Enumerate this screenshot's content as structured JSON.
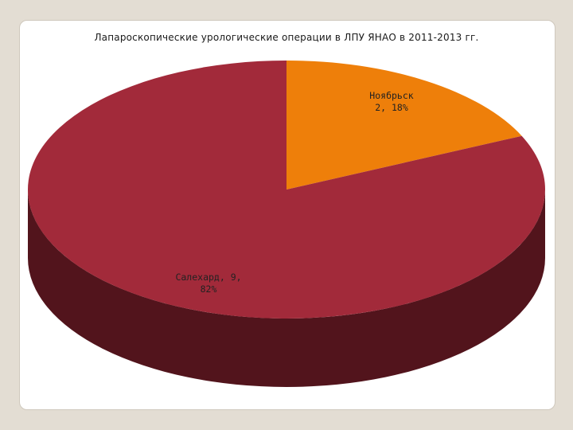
{
  "slide": {
    "background": "#e3ddd3",
    "panel_color": "#ffffff"
  },
  "chart_data": {
    "type": "pie",
    "title": "Лапароскопические урологические операции в ЛПУ ЯНАО в 2011-2013 гг.",
    "style": "3d",
    "slices": [
      {
        "name": "Ноябрьск",
        "value": 2,
        "percent": 18,
        "color": "#ee7f0a",
        "side_color": "#7a4006",
        "label_lines": [
          "Ноябрьск",
          "2, 18%"
        ]
      },
      {
        "name": "Салехард",
        "value": 9,
        "percent": 82,
        "color": "#a22a3a",
        "side_color": "#52141c",
        "label_lines": [
          "Салехард, 9,",
          "82%"
        ]
      }
    ]
  }
}
